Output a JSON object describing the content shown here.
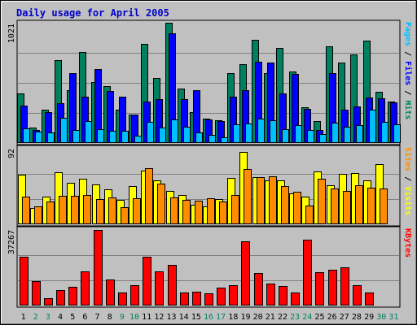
{
  "chart_data": [
    {
      "type": "bar",
      "title": "Daily usage for April 2005",
      "title_color": "#0000cc",
      "categories": [
        "1",
        "2",
        "3",
        "4",
        "5",
        "6",
        "7",
        "8",
        "9",
        "10",
        "11",
        "12",
        "13",
        "14",
        "15",
        "16",
        "17",
        "18",
        "19",
        "20",
        "21",
        "22",
        "23",
        "24",
        "25",
        "26",
        "27",
        "28",
        "29",
        "30",
        "31"
      ],
      "weekend_days": [
        "2",
        "3",
        "9",
        "10",
        "16",
        "17",
        "23",
        "24",
        "30",
        "31"
      ],
      "weekday_label_color": "#000000",
      "weekend_label_color": "#00805f",
      "panels": [
        {
          "name": "hits-files-pages",
          "ymax_label": "1021",
          "ymax": 1021,
          "right_label": [
            {
              "text": "Pages",
              "color": "#00bfff"
            },
            {
              "text": " / ",
              "color": "#000000"
            },
            {
              "text": "Files",
              "color": "#0000ff"
            },
            {
              "text": " / ",
              "color": "#000000"
            },
            {
              "text": "Hits",
              "color": "#00805f"
            }
          ],
          "series": [
            {
              "key": "hits",
              "color": "#00805f",
              "values": [
                420,
                130,
                280,
                705,
                450,
                775,
                515,
                485,
                285,
                240,
                845,
                550,
                1020,
                465,
                265,
                210,
                190,
                595,
                670,
                875,
                590,
                810,
                610,
                305,
                185,
                820,
                680,
                755,
                870,
                435,
                355
              ]
            },
            {
              "key": "files",
              "color": "#0000ff",
              "values": [
                320,
                110,
                260,
                340,
                590,
                395,
                630,
                440,
                390,
                240,
                355,
                375,
                930,
                370,
                445,
                200,
                185,
                390,
                445,
                690,
                685,
                420,
                585,
                290,
                110,
                590,
                280,
                310,
                385,
                380,
                345
              ]
            },
            {
              "key": "pages",
              "color": "#00bfff",
              "values": [
                125,
                95,
                90,
                215,
                110,
                185,
                115,
                105,
                105,
                60,
                180,
                130,
                200,
                135,
                90,
                70,
                45,
                160,
                165,
                205,
                195,
                120,
                150,
                110,
                75,
                175,
                140,
                150,
                285,
                180,
                160
              ]
            }
          ]
        },
        {
          "name": "visits-sites",
          "ymax_label": "92",
          "ymax": 92,
          "right_label": [
            {
              "text": "Sites",
              "color": "#ff8c00"
            },
            {
              "text": " / ",
              "color": "#000000"
            },
            {
              "text": "Visits",
              "color": "#ffff00"
            }
          ],
          "series": [
            {
              "key": "visits",
              "color": "#ffff00",
              "values": [
                60,
                20,
                34,
                63,
                50,
                55,
                48,
                43,
                30,
                46,
                65,
                53,
                41,
                36,
                24,
                22,
                31,
                56,
                88,
                57,
                53,
                53,
                38,
                34,
                64,
                47,
                61,
                62,
                53,
                73,
                0
              ]
            },
            {
              "key": "sites",
              "color": "#ff8c00",
              "values": [
                34,
                22,
                28,
                35,
                35,
                36,
                31,
                33,
                21,
                32,
                68,
                49,
                33,
                30,
                29,
                32,
                28,
                36,
                67,
                57,
                58,
                46,
                40,
                23,
                55,
                44,
                41,
                47,
                45,
                44,
                0
              ]
            }
          ]
        },
        {
          "name": "kbytes",
          "ymax_label": "37267",
          "ymax": 37267,
          "right_label": [
            {
              "text": "KBytes",
              "color": "#ff0000"
            }
          ],
          "series": [
            {
              "key": "kbytes",
              "color": "#ff0000",
              "values": [
                24000,
                12000,
                3500,
                7500,
                9200,
                17000,
                37267,
                12800,
                6500,
                10000,
                24000,
                17000,
                20000,
                6500,
                7000,
                6000,
                8800,
                10000,
                31500,
                16000,
                11000,
                9500,
                6500,
                32500,
                16500,
                17500,
                19000,
                10000,
                6500,
                0,
                0
              ]
            }
          ]
        }
      ]
    }
  ]
}
